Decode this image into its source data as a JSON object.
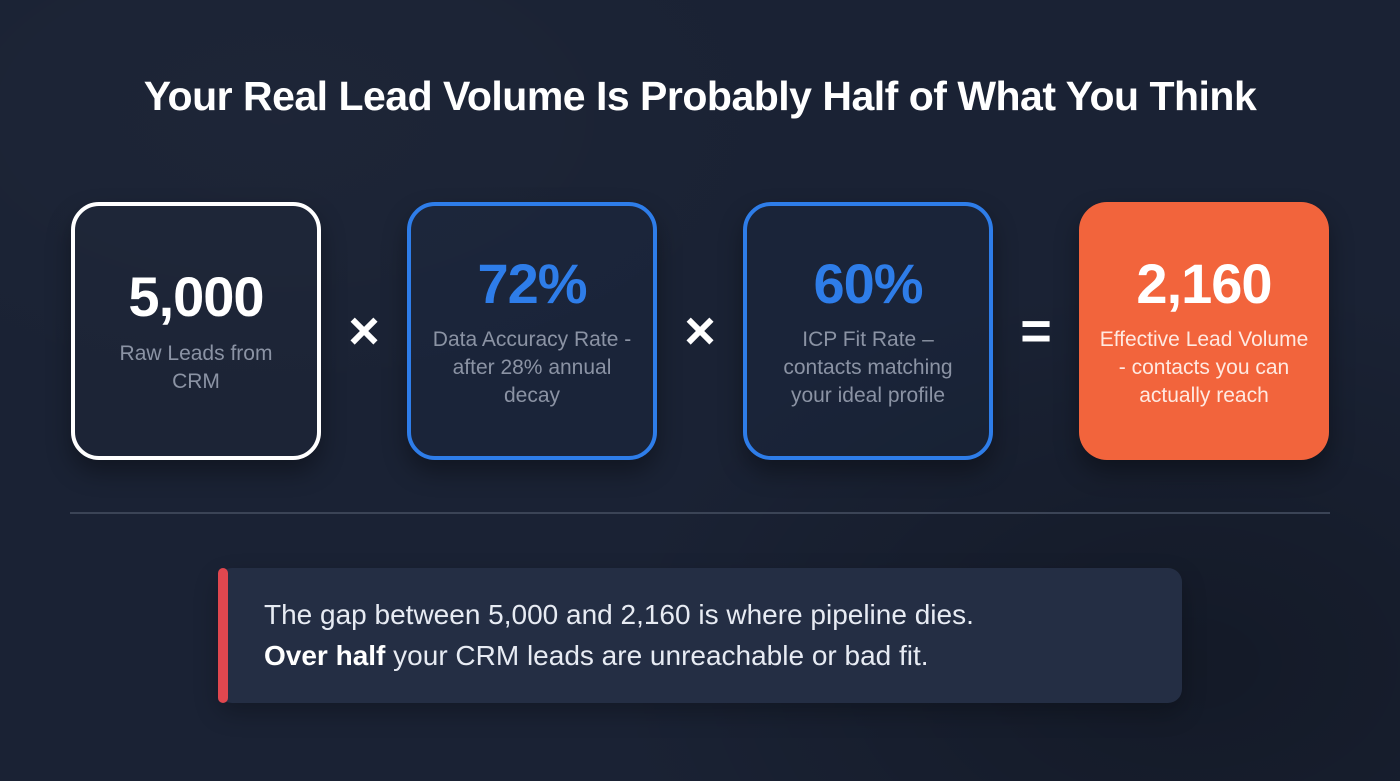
{
  "title": "Your Real Lead Volume Is Probably Half of What You Think",
  "equation": {
    "cards": [
      {
        "value": "5,000",
        "label": "Raw Leads from CRM",
        "variant": "outline-white"
      },
      {
        "value": "72%",
        "label": "Data Accuracy Rate - after 28% annual decay",
        "variant": "outline-blue"
      },
      {
        "value": "60%",
        "label": "ICP Fit Rate – contacts matching your ideal profile",
        "variant": "outline-blue"
      },
      {
        "value": "2,160",
        "label": "Effective Lead Volume - contacts you can actually reach",
        "variant": "filled-orange"
      }
    ],
    "operators": [
      "×",
      "×",
      "="
    ]
  },
  "callout": {
    "line1": "The gap between 5,000 and 2,160 is where pipeline dies.",
    "line2_bold": "Over half",
    "line2_rest": " your CRM leads are unreachable or bad fit."
  },
  "colors": {
    "background": "#1a2234",
    "accent_blue": "#2e7de9",
    "accent_orange": "#f2643c",
    "muted_text": "#8b93a4",
    "divider": "#3b4456",
    "callout_background": "#242e44",
    "callout_accent_red": "#e0474f"
  }
}
